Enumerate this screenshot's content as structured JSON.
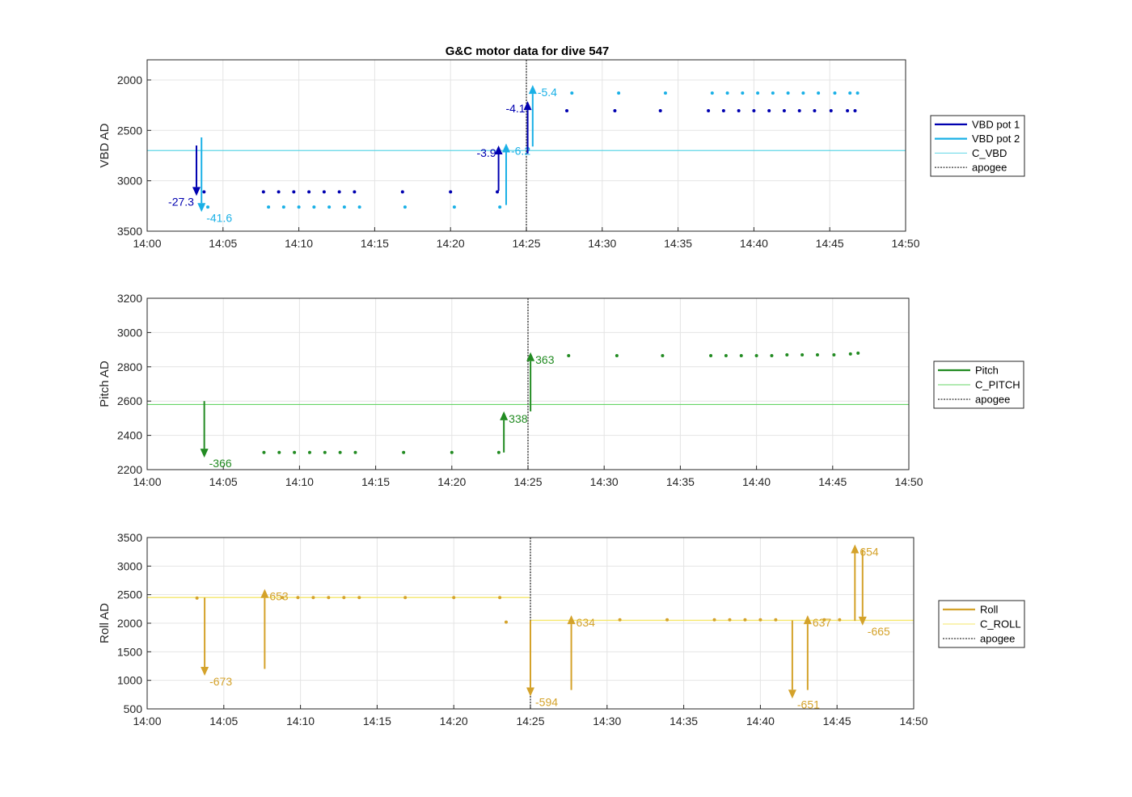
{
  "chart_data": [
    {
      "type": "scatter",
      "title": "G&C motor data for dive 547",
      "ylabel": "VBD AD",
      "xlim": [
        "14:00",
        "14:50"
      ],
      "ylim": [
        1800,
        3500
      ],
      "reversed_y": true,
      "xticks": [
        "14:00",
        "14:05",
        "14:10",
        "14:15",
        "14:20",
        "14:25",
        "14:30",
        "14:35",
        "14:40",
        "14:45",
        "14:50"
      ],
      "yticks": [
        "2000",
        "2500",
        "3000",
        "3500"
      ],
      "grid": true,
      "legend_placement": "outside-right",
      "apogee": "14:25:00",
      "hline": {
        "name": "C_VBD",
        "value": 2700,
        "color": "#5fd6e6"
      },
      "legend": [
        {
          "label": "VBD pot 1",
          "color": "#0000b0",
          "style": "thick"
        },
        {
          "label": "VBD pot 2",
          "color": "#1ab0e6",
          "style": "thick"
        },
        {
          "label": "C_VBD",
          "color": "#5fd6e6",
          "style": "thin"
        },
        {
          "label": "apogee",
          "color": "#555555",
          "style": "dotted"
        }
      ],
      "series": [
        {
          "name": "VBD pot 1",
          "color": "#0000b0",
          "x": [
            "14:03:45",
            "14:07:40",
            "14:08:40",
            "14:09:40",
            "14:10:40",
            "14:11:40",
            "14:12:40",
            "14:13:40",
            "14:16:50",
            "14:20:00",
            "14:23:05",
            "14:27:40",
            "14:30:50",
            "14:33:50",
            "14:37:00",
            "14:38:00",
            "14:39:00",
            "14:40:00",
            "14:41:00",
            "14:42:00",
            "14:43:00",
            "14:44:00",
            "14:45:05",
            "14:46:10",
            "14:46:40"
          ],
          "values": [
            3110,
            3110,
            3110,
            3110,
            3110,
            3110,
            3110,
            3110,
            3110,
            3110,
            3110,
            2305,
            2305,
            2305,
            2305,
            2305,
            2305,
            2305,
            2305,
            2305,
            2305,
            2305,
            2305,
            2305,
            2305
          ]
        },
        {
          "name": "VBD pot 2",
          "color": "#1ab0e6",
          "x": [
            "14:04:00",
            "14:08:00",
            "14:09:00",
            "14:10:00",
            "14:11:00",
            "14:12:00",
            "14:13:00",
            "14:14:00",
            "14:17:00",
            "14:20:15",
            "14:23:15",
            "14:28:00",
            "14:31:05",
            "14:34:10",
            "14:37:15",
            "14:38:15",
            "14:39:15",
            "14:40:15",
            "14:41:15",
            "14:42:15",
            "14:43:15",
            "14:44:15",
            "14:45:20",
            "14:46:20",
            "14:46:50"
          ],
          "values": [
            3260,
            3260,
            3260,
            3260,
            3260,
            3260,
            3260,
            3260,
            3260,
            3260,
            3260,
            2130,
            2130,
            2130,
            2130,
            2130,
            2130,
            2130,
            2130,
            2130,
            2130,
            2130,
            2130,
            2130,
            2130
          ]
        }
      ],
      "arrows": [
        {
          "x": "14:03:15",
          "from": 2650,
          "to": 3150,
          "label": "-27.3",
          "color": "#0000b0",
          "label_side": "left"
        },
        {
          "x": "14:03:35",
          "from": 2570,
          "to": 3310,
          "label": "-41.6",
          "color": "#1ab0e6",
          "label_side": "right"
        },
        {
          "x": "14:23:10",
          "from": 3100,
          "to": 2650,
          "label": "-3.9",
          "color": "#0000b0",
          "label_side": "left"
        },
        {
          "x": "14:23:40",
          "from": 3240,
          "to": 2630,
          "label": "-6.2",
          "color": "#1ab0e6",
          "label_side": "right"
        },
        {
          "x": "14:25:05",
          "from": 2730,
          "to": 2210,
          "label": "-4.1",
          "color": "#0000b0",
          "label_side": "left"
        },
        {
          "x": "14:25:25",
          "from": 2660,
          "to": 2050,
          "label": "-5.4",
          "color": "#1ab0e6",
          "label_side": "right"
        }
      ]
    },
    {
      "type": "scatter",
      "ylabel": "Pitch AD",
      "xlim": [
        "14:00",
        "14:50"
      ],
      "ylim": [
        2200,
        3200
      ],
      "xticks": [
        "14:00",
        "14:05",
        "14:10",
        "14:15",
        "14:20",
        "14:25",
        "14:30",
        "14:35",
        "14:40",
        "14:45",
        "14:50"
      ],
      "yticks": [
        "2200",
        "2400",
        "2600",
        "2800",
        "3000",
        "3200"
      ],
      "grid": true,
      "legend_placement": "outside-right",
      "apogee": "14:25:00",
      "hline": {
        "name": "C_PITCH",
        "value": 2580,
        "color": "#66d466"
      },
      "legend": [
        {
          "label": "Pitch",
          "color": "#228b22",
          "style": "thick"
        },
        {
          "label": "C_PITCH",
          "color": "#66d466",
          "style": "thin"
        },
        {
          "label": "apogee",
          "color": "#555555",
          "style": "dotted"
        }
      ],
      "series": [
        {
          "name": "Pitch",
          "color": "#228b22",
          "x": [
            "14:07:40",
            "14:08:40",
            "14:09:40",
            "14:10:40",
            "14:11:40",
            "14:12:40",
            "14:13:40",
            "14:16:50",
            "14:20:00",
            "14:23:05",
            "14:27:40",
            "14:30:50",
            "14:33:50",
            "14:37:00",
            "14:38:00",
            "14:39:00",
            "14:40:00",
            "14:41:00",
            "14:42:00",
            "14:43:00",
            "14:44:00",
            "14:45:05",
            "14:46:10",
            "14:46:40"
          ],
          "values": [
            2300,
            2300,
            2300,
            2300,
            2300,
            2300,
            2300,
            2300,
            2300,
            2300,
            2865,
            2865,
            2865,
            2865,
            2865,
            2865,
            2865,
            2865,
            2870,
            2870,
            2870,
            2870,
            2875,
            2880
          ]
        }
      ],
      "arrows": [
        {
          "x": "14:03:45",
          "from": 2600,
          "to": 2270,
          "label": "-366",
          "color": "#228b22",
          "label_side": "right"
        },
        {
          "x": "14:23:25",
          "from": 2300,
          "to": 2540,
          "label": "338",
          "color": "#228b22",
          "label_side": "right"
        },
        {
          "x": "14:25:10",
          "from": 2540,
          "to": 2885,
          "label": "363",
          "color": "#228b22",
          "label_side": "right"
        }
      ]
    },
    {
      "type": "scatter",
      "ylabel": "Roll AD",
      "xlim": [
        "14:00",
        "14:50"
      ],
      "ylim": [
        500,
        3500
      ],
      "xticks": [
        "14:00",
        "14:05",
        "14:10",
        "14:15",
        "14:20",
        "14:25",
        "14:30",
        "14:35",
        "14:40",
        "14:45",
        "14:50"
      ],
      "yticks": [
        "500",
        "1000",
        "1500",
        "2000",
        "2500",
        "3000",
        "3500"
      ],
      "grid": true,
      "legend_placement": "outside-right",
      "apogee": "14:25:00",
      "c_roll_segments": [
        {
          "from": "14:00:00",
          "to": "14:25:00",
          "value": 2450
        },
        {
          "from": "14:25:00",
          "to": "14:50:00",
          "value": 2050
        }
      ],
      "c_roll_color": "#f5e76a",
      "legend": [
        {
          "label": "Roll",
          "color": "#d4a22a",
          "style": "thick"
        },
        {
          "label": "C_ROLL",
          "color": "#f5e76a",
          "style": "thin"
        },
        {
          "label": "apogee",
          "color": "#555555",
          "style": "dotted"
        }
      ],
      "series": [
        {
          "name": "Roll",
          "color": "#d4a22a",
          "x": [
            "14:03:15",
            "14:08:50",
            "14:09:50",
            "14:10:50",
            "14:11:50",
            "14:12:50",
            "14:13:50",
            "14:16:50",
            "14:20:00",
            "14:23:00",
            "14:23:25",
            "14:30:50",
            "14:33:55",
            "14:37:00",
            "14:38:00",
            "14:39:00",
            "14:40:00",
            "14:41:00",
            "14:44:10",
            "14:45:10"
          ],
          "values": [
            2440,
            2450,
            2450,
            2450,
            2450,
            2450,
            2450,
            2450,
            2450,
            2450,
            2020,
            2060,
            2060,
            2060,
            2060,
            2060,
            2060,
            2060,
            2060,
            2060
          ]
        }
      ],
      "arrows": [
        {
          "x": "14:03:45",
          "from": 2450,
          "to": 1080,
          "label": "-673",
          "color": "#d4a22a",
          "label_side": "right"
        },
        {
          "x": "14:07:40",
          "from": 1200,
          "to": 2600,
          "label": "653",
          "color": "#d4a22a",
          "label_side": "right"
        },
        {
          "x": "14:25:00",
          "from": 2050,
          "to": 720,
          "label": "-594",
          "color": "#d4a22a",
          "label_side": "right"
        },
        {
          "x": "14:27:40",
          "from": 830,
          "to": 2140,
          "label": "634",
          "color": "#d4a22a",
          "label_side": "right"
        },
        {
          "x": "14:42:05",
          "from": 2050,
          "to": 680,
          "label": "-651",
          "color": "#d4a22a",
          "label_side": "right"
        },
        {
          "x": "14:43:05",
          "from": 830,
          "to": 2140,
          "label": "637",
          "color": "#d4a22a",
          "label_side": "right"
        },
        {
          "x": "14:46:10",
          "from": 2040,
          "to": 3380,
          "label": "654",
          "color": "#d4a22a",
          "label_side": "right"
        },
        {
          "x": "14:46:40",
          "from": 3290,
          "to": 1960,
          "label": "-665",
          "color": "#d4a22a",
          "label_side": "right"
        }
      ]
    }
  ]
}
